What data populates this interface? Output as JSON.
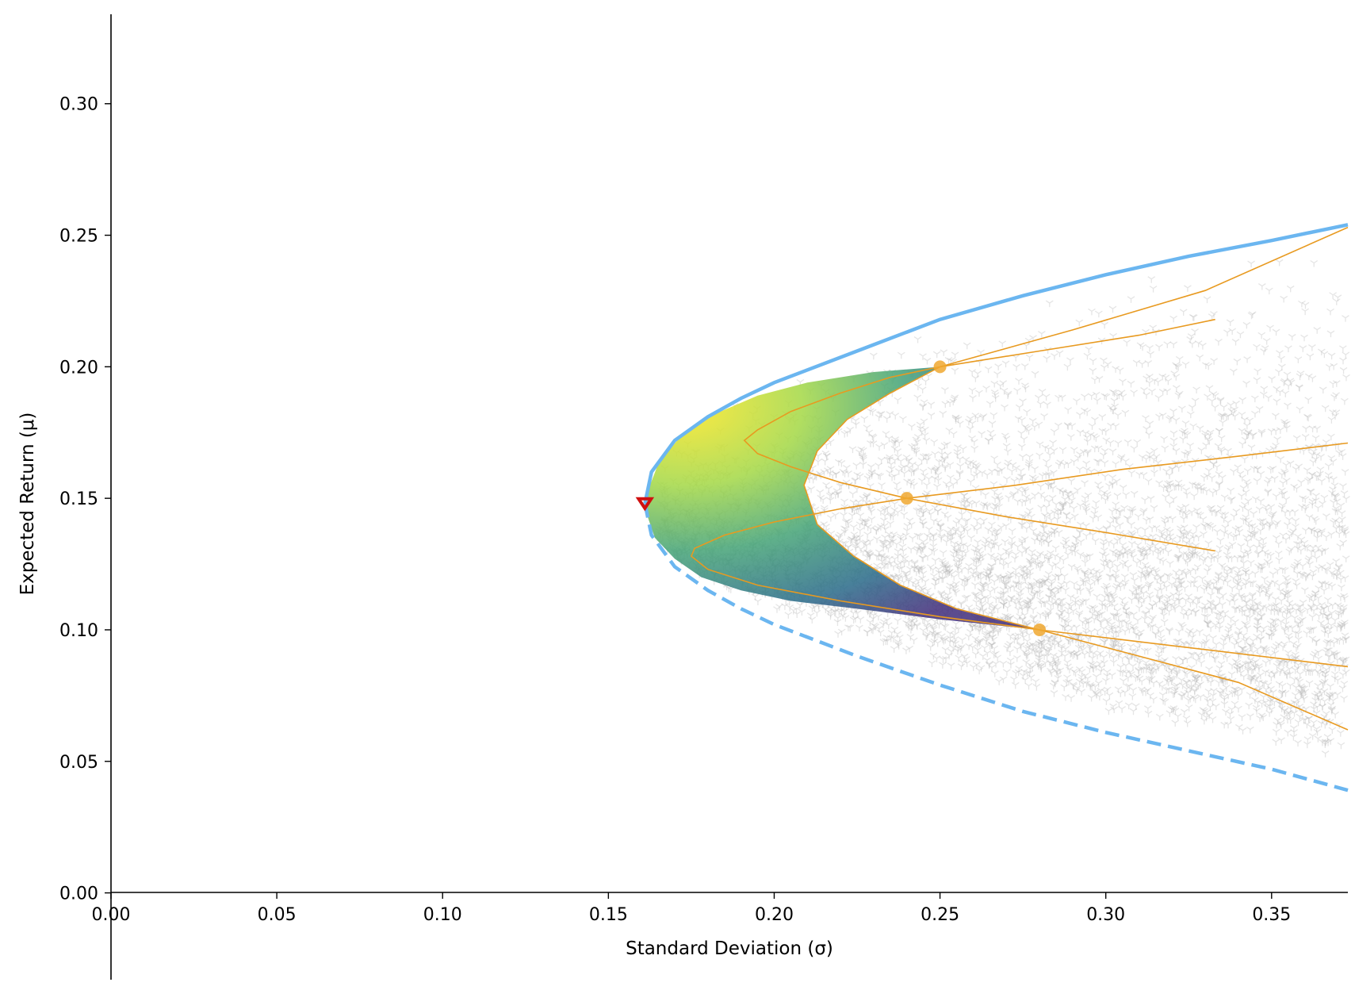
{
  "chart_data": {
    "type": "scatter",
    "title": "",
    "xlabel": "Standard Deviation (σ)",
    "ylabel": "Expected Return (μ)",
    "xlim": [
      0,
      0.373
    ],
    "ylim": [
      -0.033,
      0.334
    ],
    "xticks": [
      0.0,
      0.05,
      0.1,
      0.15,
      0.2,
      0.25,
      0.3,
      0.35
    ],
    "xtick_labels": [
      "0.00",
      "0.05",
      "0.10",
      "0.15",
      "0.20",
      "0.25",
      "0.30",
      "0.35"
    ],
    "yticks": [
      0.0,
      0.05,
      0.1,
      0.15,
      0.2,
      0.25,
      0.3
    ],
    "ytick_labels": [
      "0.00",
      "0.05",
      "0.10",
      "0.15",
      "0.20",
      "0.25",
      "0.30"
    ],
    "grid": false,
    "minimum_variance_portfolio": {
      "sigma": 0.161,
      "mu": 0.148
    },
    "efficient_frontier": {
      "upper": [
        [
          0.161,
          0.148
        ],
        [
          0.163,
          0.16
        ],
        [
          0.17,
          0.172
        ],
        [
          0.18,
          0.181
        ],
        [
          0.19,
          0.188
        ],
        [
          0.2,
          0.194
        ],
        [
          0.225,
          0.206
        ],
        [
          0.25,
          0.218
        ],
        [
          0.275,
          0.227
        ],
        [
          0.3,
          0.235
        ],
        [
          0.325,
          0.242
        ],
        [
          0.35,
          0.248
        ],
        [
          0.373,
          0.254
        ]
      ],
      "lower": [
        [
          0.161,
          0.148
        ],
        [
          0.163,
          0.136
        ],
        [
          0.17,
          0.124
        ],
        [
          0.18,
          0.115
        ],
        [
          0.19,
          0.108
        ],
        [
          0.2,
          0.102
        ],
        [
          0.225,
          0.09
        ],
        [
          0.25,
          0.079
        ],
        [
          0.275,
          0.069
        ],
        [
          0.3,
          0.061
        ],
        [
          0.325,
          0.054
        ],
        [
          0.35,
          0.047
        ],
        [
          0.373,
          0.039
        ]
      ]
    },
    "assets": [
      {
        "sigma": 0.25,
        "mu": 0.2
      },
      {
        "sigma": 0.24,
        "mu": 0.15
      },
      {
        "sigma": 0.28,
        "mu": 0.1
      }
    ],
    "pairwise_curves": [
      [
        [
          0.25,
          0.2
        ],
        [
          0.235,
          0.196
        ],
        [
          0.22,
          0.19
        ],
        [
          0.205,
          0.183
        ],
        [
          0.195,
          0.176
        ],
        [
          0.191,
          0.172
        ],
        [
          0.195,
          0.167
        ],
        [
          0.205,
          0.162
        ],
        [
          0.22,
          0.156
        ],
        [
          0.24,
          0.15
        ],
        [
          0.27,
          0.143
        ],
        [
          0.3,
          0.137
        ],
        [
          0.333,
          0.13
        ]
      ],
      [
        [
          0.25,
          0.2
        ],
        [
          0.235,
          0.19
        ],
        [
          0.222,
          0.18
        ],
        [
          0.213,
          0.168
        ],
        [
          0.209,
          0.155
        ],
        [
          0.213,
          0.14
        ],
        [
          0.224,
          0.128
        ],
        [
          0.238,
          0.117
        ],
        [
          0.255,
          0.108
        ],
        [
          0.28,
          0.1
        ],
        [
          0.31,
          0.09
        ],
        [
          0.34,
          0.08
        ],
        [
          0.373,
          0.062
        ]
      ],
      [
        [
          0.24,
          0.15
        ],
        [
          0.22,
          0.146
        ],
        [
          0.2,
          0.141
        ],
        [
          0.185,
          0.136
        ],
        [
          0.176,
          0.131
        ],
        [
          0.175,
          0.128
        ],
        [
          0.18,
          0.123
        ],
        [
          0.195,
          0.117
        ],
        [
          0.22,
          0.111
        ],
        [
          0.25,
          0.105
        ],
        [
          0.28,
          0.1
        ],
        [
          0.32,
          0.094
        ],
        [
          0.373,
          0.086
        ]
      ],
      [
        [
          0.24,
          0.15
        ],
        [
          0.273,
          0.155
        ],
        [
          0.305,
          0.161
        ],
        [
          0.34,
          0.166
        ],
        [
          0.373,
          0.171
        ]
      ],
      [
        [
          0.25,
          0.2
        ],
        [
          0.28,
          0.206
        ],
        [
          0.31,
          0.212
        ],
        [
          0.333,
          0.218
        ]
      ],
      [
        [
          0.25,
          0.2
        ],
        [
          0.29,
          0.214
        ],
        [
          0.33,
          0.229
        ],
        [
          0.373,
          0.253
        ]
      ]
    ],
    "random_portfolios": {
      "count": 5000,
      "color": "#b4b4b4"
    },
    "colors": {
      "frontier": "#6bb6f0",
      "assets": "#f0a830",
      "curves": "#e89a20",
      "minimum_variance_marker": "#d01010",
      "fill_colormap": [
        "#440154",
        "#3b528b",
        "#21918c",
        "#5ec962",
        "#fde725"
      ]
    }
  }
}
